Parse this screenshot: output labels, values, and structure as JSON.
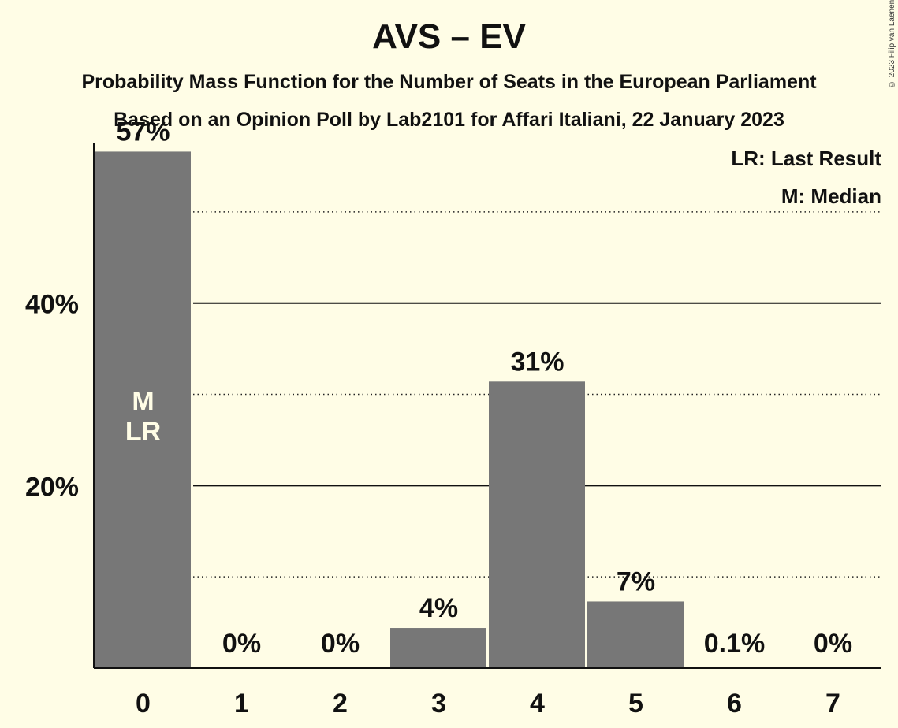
{
  "title": "AVS – EV",
  "subtitle1": "Probability Mass Function for the Number of Seats in the European Parliament",
  "subtitle2": "Based on an Opinion Poll by Lab2101 for Affari Italiani, 22 January 2023",
  "copyright": "© 2023 Filip van Laenen",
  "chart_data": {
    "type": "bar",
    "categories": [
      "0",
      "1",
      "2",
      "3",
      "4",
      "5",
      "6",
      "7"
    ],
    "values": [
      56.6,
      0,
      0,
      4.4,
      31.4,
      7.3,
      0.1,
      0
    ],
    "value_labels": [
      "57%",
      "0%",
      "0%",
      "4%",
      "31%",
      "7%",
      "0.1%",
      "0%"
    ],
    "ylim": [
      0,
      57.5
    ],
    "major_ticks": [
      20,
      40
    ],
    "major_tick_labels": [
      "20%",
      "40%"
    ],
    "minor_gridlines": [
      10,
      30,
      50
    ],
    "bar_color": "#777777",
    "background": "#fffde6",
    "median_index": 0,
    "last_result_index": 0,
    "median_marker": "M",
    "last_result_marker": "LR",
    "legend": {
      "position": "top-right",
      "entries": [
        "LR: Last Result",
        "M: Median"
      ]
    }
  }
}
